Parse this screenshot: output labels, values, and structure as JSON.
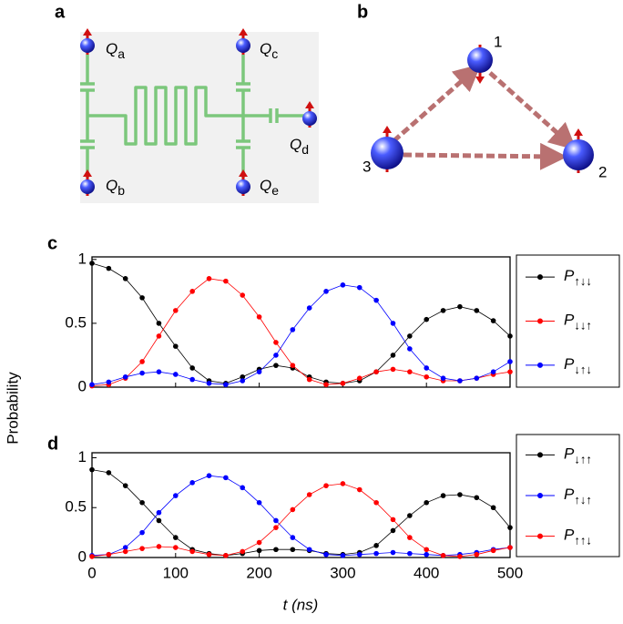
{
  "panels": {
    "letters": [
      "a",
      "b",
      "c",
      "d"
    ],
    "qubits": [
      {
        "symbol": "Q",
        "index": "a"
      },
      {
        "symbol": "Q",
        "index": "b"
      },
      {
        "symbol": "Q",
        "index": "c"
      },
      {
        "symbol": "Q",
        "index": "e"
      },
      {
        "symbol": "Q",
        "index": "d"
      }
    ],
    "spins": [
      "1",
      "2",
      "3"
    ]
  },
  "ylabel": "Probability",
  "xlabel": "t (ns)",
  "chart_data": [
    {
      "type": "line",
      "xlim": [
        0,
        500
      ],
      "ylim": [
        0,
        1.02
      ],
      "yticks": [
        0,
        0.5,
        1
      ],
      "xticks": [
        0,
        100,
        200,
        300,
        400,
        500
      ],
      "xtick_labels": false,
      "x": [
        0,
        20,
        40,
        60,
        80,
        100,
        120,
        140,
        160,
        180,
        200,
        220,
        240,
        260,
        280,
        300,
        320,
        340,
        360,
        380,
        400,
        420,
        440,
        460,
        480,
        500
      ],
      "series": [
        {
          "name": "P↑↓↓",
          "color": "#000000",
          "values": [
            0.97,
            0.93,
            0.85,
            0.7,
            0.5,
            0.32,
            0.15,
            0.05,
            0.03,
            0.08,
            0.14,
            0.17,
            0.15,
            0.08,
            0.04,
            0.03,
            0.05,
            0.12,
            0.25,
            0.4,
            0.53,
            0.6,
            0.63,
            0.6,
            0.52,
            0.4
          ]
        },
        {
          "name": "P↓↓↑",
          "color": "#ff0000",
          "values": [
            0.01,
            0.02,
            0.07,
            0.2,
            0.4,
            0.6,
            0.75,
            0.85,
            0.83,
            0.72,
            0.55,
            0.35,
            0.17,
            0.06,
            0.02,
            0.03,
            0.07,
            0.12,
            0.14,
            0.12,
            0.08,
            0.05,
            0.05,
            0.07,
            0.1,
            0.12
          ]
        },
        {
          "name": "P↓↑↓",
          "color": "#0000ff",
          "values": [
            0.02,
            0.04,
            0.08,
            0.11,
            0.12,
            0.1,
            0.06,
            0.03,
            0.02,
            0.05,
            0.12,
            0.25,
            0.45,
            0.62,
            0.75,
            0.8,
            0.78,
            0.68,
            0.5,
            0.3,
            0.15,
            0.07,
            0.05,
            0.07,
            0.12,
            0.2
          ]
        }
      ]
    },
    {
      "type": "line",
      "xlim": [
        0,
        500
      ],
      "ylim": [
        0,
        1.05
      ],
      "yticks": [
        0,
        0.5,
        1
      ],
      "xticks": [
        0,
        100,
        200,
        300,
        400,
        500
      ],
      "xtick_labels": true,
      "x": [
        0,
        20,
        40,
        60,
        80,
        100,
        120,
        140,
        160,
        180,
        200,
        220,
        240,
        260,
        280,
        300,
        320,
        340,
        360,
        380,
        400,
        420,
        440,
        460,
        480,
        500
      ],
      "series": [
        {
          "name": "P↓↑↑",
          "color": "#000000",
          "values": [
            0.88,
            0.85,
            0.72,
            0.55,
            0.37,
            0.2,
            0.08,
            0.04,
            0.02,
            0.04,
            0.07,
            0.08,
            0.08,
            0.07,
            0.04,
            0.03,
            0.05,
            0.12,
            0.27,
            0.42,
            0.55,
            0.62,
            0.63,
            0.6,
            0.5,
            0.3
          ]
        },
        {
          "name": "P↑↓↑",
          "color": "#0000ff",
          "values": [
            0.02,
            0.03,
            0.1,
            0.25,
            0.45,
            0.62,
            0.75,
            0.82,
            0.8,
            0.7,
            0.55,
            0.37,
            0.2,
            0.08,
            0.03,
            0.02,
            0.03,
            0.04,
            0.05,
            0.04,
            0.03,
            0.02,
            0.03,
            0.05,
            0.08,
            0.1
          ]
        },
        {
          "name": "P↑↑↓",
          "color": "#ff0000",
          "values": [
            0.01,
            0.03,
            0.06,
            0.09,
            0.11,
            0.1,
            0.06,
            0.03,
            0.02,
            0.06,
            0.15,
            0.3,
            0.48,
            0.63,
            0.72,
            0.74,
            0.68,
            0.55,
            0.38,
            0.2,
            0.08,
            0.02,
            0.01,
            0.03,
            0.07,
            0.1
          ]
        }
      ]
    }
  ]
}
